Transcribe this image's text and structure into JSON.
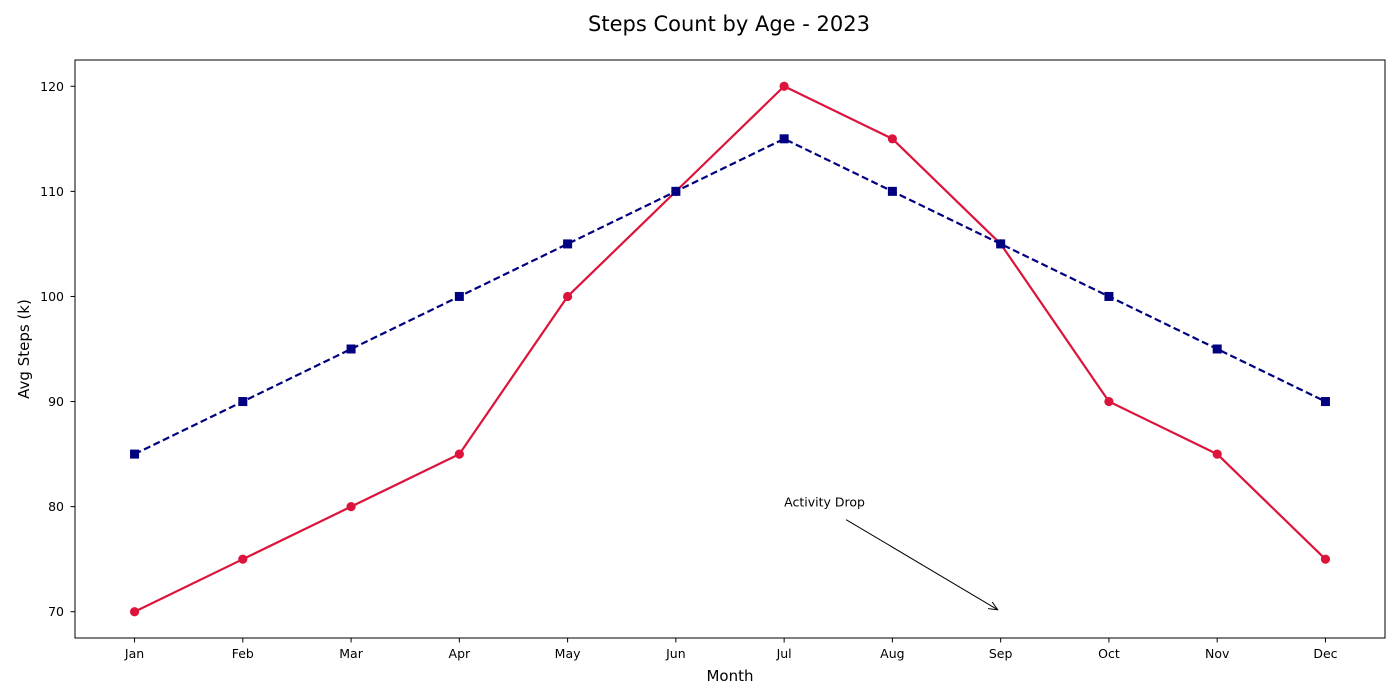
{
  "chart_data": {
    "type": "line",
    "title": "Steps Count by Age - 2023",
    "xlabel": "Month",
    "ylabel": "Avg Steps (k)",
    "categories": [
      "Jan",
      "Feb",
      "Mar",
      "Apr",
      "May",
      "Jun",
      "Jul",
      "Aug",
      "Sep",
      "Oct",
      "Nov",
      "Dec"
    ],
    "ylim": [
      67.5,
      122.5
    ],
    "yticks": [
      70,
      80,
      90,
      100,
      110,
      120
    ],
    "grid": false,
    "legend": null,
    "series": [
      {
        "values": [
          70,
          75,
          80,
          85,
          100,
          110,
          120,
          115,
          105,
          90,
          85,
          75
        ],
        "color": "#dc143c",
        "line_style": "solid",
        "marker": "circle"
      },
      {
        "values": [
          85,
          90,
          95,
          100,
          105,
          110,
          115,
          110,
          105,
          100,
          95,
          90
        ],
        "color": "#000080",
        "line_style": "dashed",
        "marker": "square"
      }
    ],
    "annotations": [
      {
        "text": "Activity Drop",
        "text_x": "Jul",
        "text_y": 80,
        "arrow_to_x": "Sep",
        "arrow_to_y": 70
      }
    ]
  }
}
